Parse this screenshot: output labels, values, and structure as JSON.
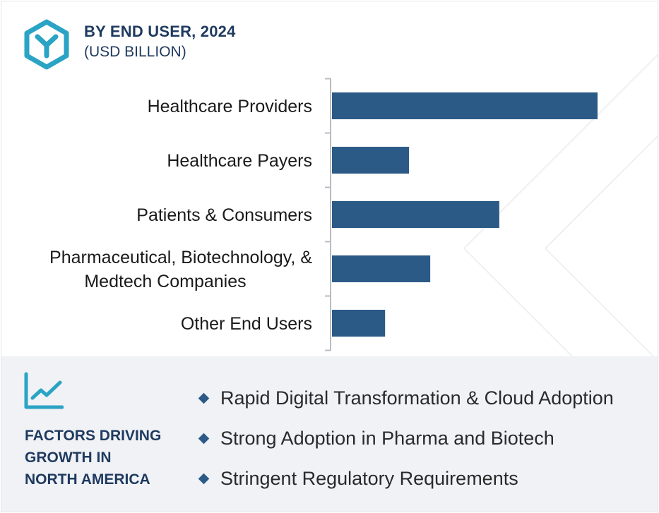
{
  "header": {
    "title": "BY END USER, 2024",
    "subtitle": "(USD BILLION)"
  },
  "colors": {
    "bar": "#2c5a87",
    "accent": "#2aa3c4",
    "heading": "#1f3a5f",
    "footer_bg": "#f0f2f6"
  },
  "icons": {
    "logo": "hexagon-y-logo",
    "factors": "trend-line-chart-icon",
    "bullet": "diamond-bullet"
  },
  "chart_data": {
    "type": "bar",
    "orientation": "horizontal",
    "categories": [
      [
        "Healthcare Providers"
      ],
      [
        "Healthcare Payers"
      ],
      [
        "Patients & Consumers"
      ],
      [
        "Pharmaceutical, Biotechnology, &",
        "Medtech Companies"
      ],
      [
        "Other End Users"
      ]
    ],
    "values": [
      100,
      29,
      63,
      37,
      20
    ],
    "xlim": [
      0,
      100
    ],
    "axis_labels_shown": false,
    "grid": false,
    "legend": "none"
  },
  "footer": {
    "title_lines": [
      "FACTORS DRIVING",
      "GROWTH IN",
      "NORTH AMERICA"
    ],
    "factors": [
      "Rapid Digital Transformation & Cloud Adoption",
      "Strong Adoption in Pharma and Biotech",
      "Stringent Regulatory Requirements"
    ]
  }
}
